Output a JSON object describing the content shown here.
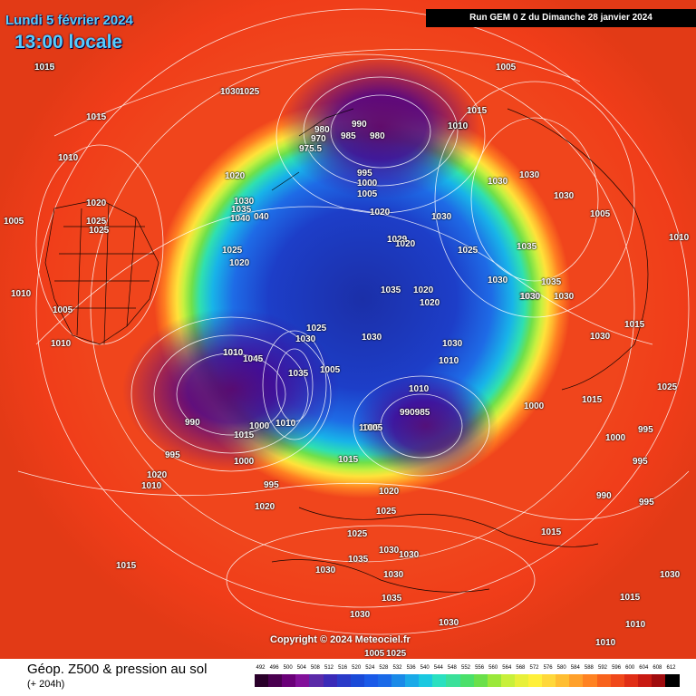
{
  "header": {
    "date": "Lundi 5 février 2024",
    "local_time": "13:00 locale",
    "run_info": "Run GEM 0 Z du Dimanche 28 janvier 2024"
  },
  "footer": {
    "copyright": "Copyright © 2024 Meteociel.fr",
    "legend_title": "Géop. Z500 & pression au sol",
    "legend_sub": "(+ 204h)"
  },
  "scale": {
    "values": [
      "492",
      "496",
      "500",
      "504",
      "508",
      "512",
      "516",
      "520",
      "524",
      "528",
      "532",
      "536",
      "540",
      "544",
      "548",
      "552",
      "556",
      "560",
      "564",
      "568",
      "572",
      "576",
      "580",
      "584",
      "588",
      "592",
      "596",
      "600",
      "604",
      "608",
      "612"
    ],
    "colors": [
      "#2a002a",
      "#4a0050",
      "#6a0078",
      "#82109a",
      "#5a2aa8",
      "#3a2ab8",
      "#2a3ac8",
      "#1a4ad8",
      "#1a5ae8",
      "#1a6ae8",
      "#1a8ae8",
      "#1aaae8",
      "#1ac8e0",
      "#2ae0c0",
      "#3ae09a",
      "#4ae06a",
      "#6ae04a",
      "#9ae83a",
      "#c8f03a",
      "#e8f03a",
      "#fff03a",
      "#ffd83a",
      "#ffbe32",
      "#ffa02a",
      "#ff8222",
      "#f8621c",
      "#f0481a",
      "#e02e16",
      "#c81a12",
      "#a00c0e",
      "#000000"
    ]
  },
  "pressure_labels": [
    "1010",
    "1030",
    "1025",
    "1005",
    "1015",
    "1010",
    "1020",
    "1010",
    "1020",
    "1025",
    "1025",
    "1030",
    "1035",
    "1040",
    "040",
    "1025",
    "1020",
    "990",
    "980",
    "970",
    "985",
    "980",
    "975.5",
    "995",
    "1000",
    "1005",
    "1010",
    "1015",
    "1030",
    "1030",
    "1030",
    "1020",
    "1029",
    "1020",
    "1030",
    "1025",
    "1035",
    "1030",
    "1030",
    "1035",
    "1030",
    "1005",
    "1010",
    "1005",
    "1010",
    "1005",
    "1010",
    "1015",
    "1035",
    "1020",
    "1020",
    "1030",
    "1030",
    "1030",
    "1025",
    "1030",
    "1010",
    "1010",
    "1045",
    "1035",
    "1005",
    "1010",
    "1000",
    "995",
    "990",
    "1015",
    "1000",
    "1010",
    "1000",
    "995",
    "990985",
    "1005",
    "1005",
    "1020",
    "1010",
    "1015",
    "1020",
    "1015",
    "1000",
    "995",
    "995",
    "990",
    "995",
    "1020",
    "1025",
    "1015",
    "1015",
    "1025",
    "1030",
    "1030",
    "1030",
    "1035",
    "1030",
    "1035",
    "1030",
    "1030",
    "1030",
    "1030",
    "1015",
    "1010",
    "1010",
    "1005",
    "1025",
    "1025",
    "1015"
  ]
}
